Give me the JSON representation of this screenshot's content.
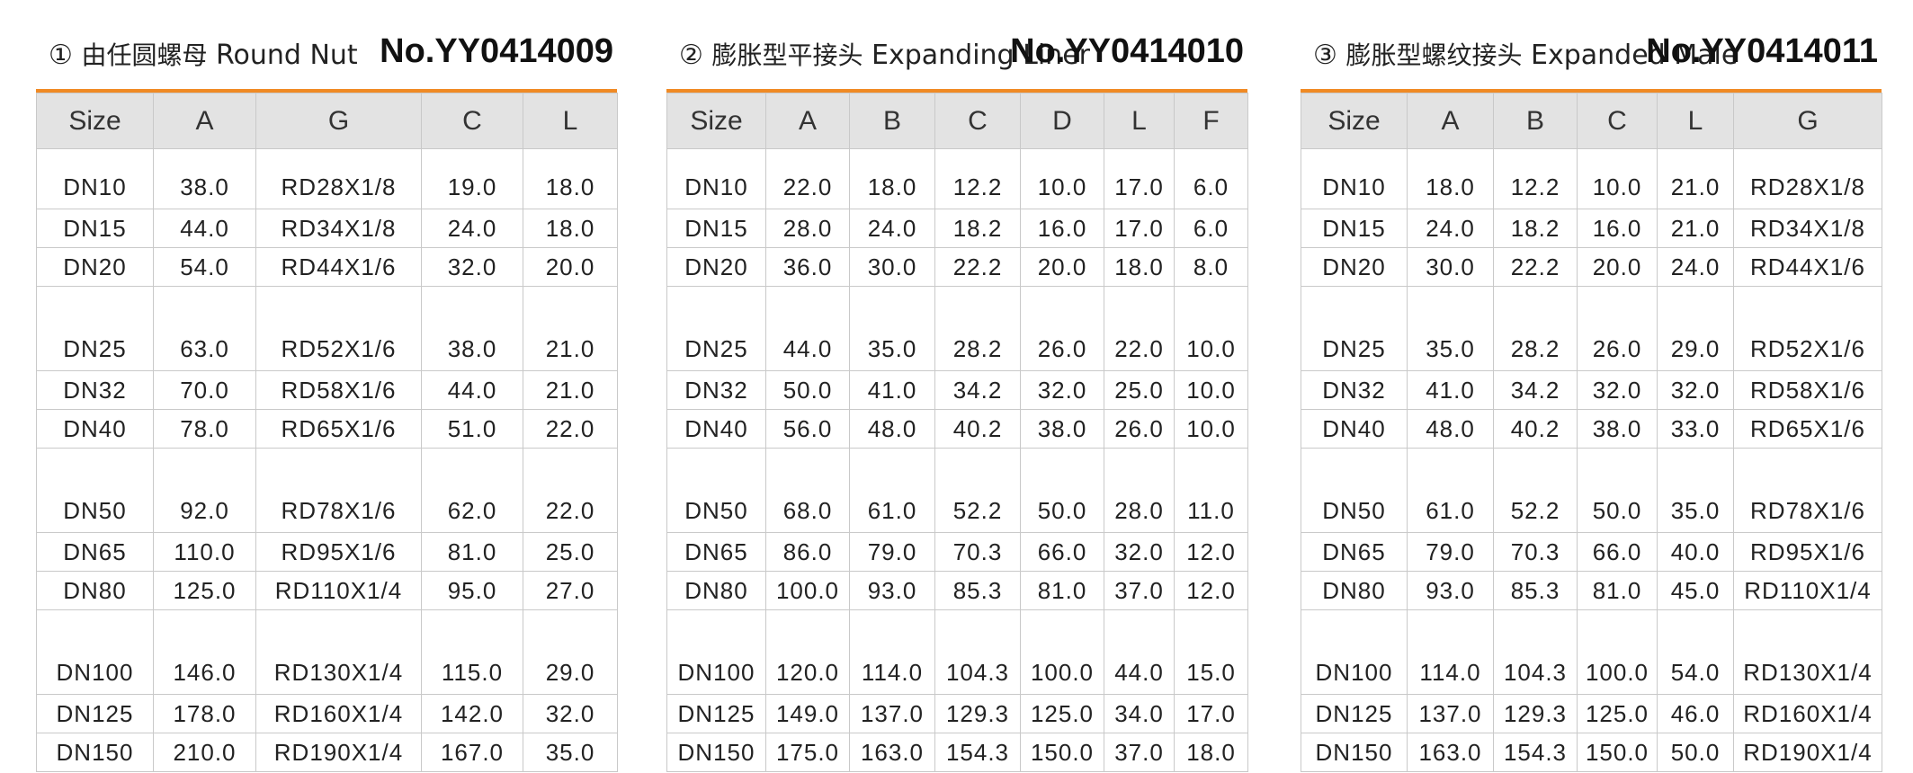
{
  "panels": [
    {
      "id": "round-nut",
      "circle_num": "①",
      "title_zh": "由任圆螺母",
      "title_en": "Round Nut",
      "code": "No.YY0414009",
      "columns": [
        "Size",
        "A",
        "G",
        "C",
        "L"
      ],
      "rows": [
        [
          "DN10",
          "38.0",
          "RD28X1/8",
          "19.0",
          "18.0"
        ],
        [
          "DN15",
          "44.0",
          "RD34X1/8",
          "24.0",
          "18.0"
        ],
        [
          "DN20",
          "54.0",
          "RD44X1/6",
          "32.0",
          "20.0"
        ],
        [
          "DN25",
          "63.0",
          "RD52X1/6",
          "38.0",
          "21.0"
        ],
        [
          "DN32",
          "70.0",
          "RD58X1/6",
          "44.0",
          "21.0"
        ],
        [
          "DN40",
          "78.0",
          "RD65X1/6",
          "51.0",
          "22.0"
        ],
        [
          "DN50",
          "92.0",
          "RD78X1/6",
          "62.0",
          "22.0"
        ],
        [
          "DN65",
          "110.0",
          "RD95X1/6",
          "81.0",
          "25.0"
        ],
        [
          "DN80",
          "125.0",
          "RD110X1/4",
          "95.0",
          "27.0"
        ],
        [
          "DN100",
          "146.0",
          "RD130X1/4",
          "115.0",
          "29.0"
        ],
        [
          "DN125",
          "178.0",
          "RD160X1/4",
          "142.0",
          "32.0"
        ],
        [
          "DN150",
          "210.0",
          "RD190X1/4",
          "167.0",
          "35.0"
        ]
      ]
    },
    {
      "id": "expanding-liner",
      "circle_num": "②",
      "title_zh": "膨胀型平接头",
      "title_en": "Expanding Liner",
      "code": "No.YY0414010",
      "columns": [
        "Size",
        "A",
        "B",
        "C",
        "D",
        "L",
        "F"
      ],
      "rows": [
        [
          "DN10",
          "22.0",
          "18.0",
          "12.2",
          "10.0",
          "17.0",
          "6.0"
        ],
        [
          "DN15",
          "28.0",
          "24.0",
          "18.2",
          "16.0",
          "17.0",
          "6.0"
        ],
        [
          "DN20",
          "36.0",
          "30.0",
          "22.2",
          "20.0",
          "18.0",
          "8.0"
        ],
        [
          "DN25",
          "44.0",
          "35.0",
          "28.2",
          "26.0",
          "22.0",
          "10.0"
        ],
        [
          "DN32",
          "50.0",
          "41.0",
          "34.2",
          "32.0",
          "25.0",
          "10.0"
        ],
        [
          "DN40",
          "56.0",
          "48.0",
          "40.2",
          "38.0",
          "26.0",
          "10.0"
        ],
        [
          "DN50",
          "68.0",
          "61.0",
          "52.2",
          "50.0",
          "28.0",
          "11.0"
        ],
        [
          "DN65",
          "86.0",
          "79.0",
          "70.3",
          "66.0",
          "32.0",
          "12.0"
        ],
        [
          "DN80",
          "100.0",
          "93.0",
          "85.3",
          "81.0",
          "37.0",
          "12.0"
        ],
        [
          "DN100",
          "120.0",
          "114.0",
          "104.3",
          "100.0",
          "44.0",
          "15.0"
        ],
        [
          "DN125",
          "149.0",
          "137.0",
          "129.3",
          "125.0",
          "34.0",
          "17.0"
        ],
        [
          "DN150",
          "175.0",
          "163.0",
          "154.3",
          "150.0",
          "37.0",
          "18.0"
        ]
      ]
    },
    {
      "id": "expanded-male",
      "circle_num": "③",
      "title_zh": "膨胀型螺纹接头",
      "title_en": "Expanded Male",
      "code": "No.YY0414011",
      "columns": [
        "Size",
        "A",
        "B",
        "C",
        "L",
        "G"
      ],
      "rows": [
        [
          "DN10",
          "18.0",
          "12.2",
          "10.0",
          "21.0",
          "RD28X1/8"
        ],
        [
          "DN15",
          "24.0",
          "18.2",
          "16.0",
          "21.0",
          "RD34X1/8"
        ],
        [
          "DN20",
          "30.0",
          "22.2",
          "20.0",
          "24.0",
          "RD44X1/6"
        ],
        [
          "DN25",
          "35.0",
          "28.2",
          "26.0",
          "29.0",
          "RD52X1/6"
        ],
        [
          "DN32",
          "41.0",
          "34.2",
          "32.0",
          "32.0",
          "RD58X1/6"
        ],
        [
          "DN40",
          "48.0",
          "40.2",
          "38.0",
          "33.0",
          "RD65X1/6"
        ],
        [
          "DN50",
          "61.0",
          "52.2",
          "50.0",
          "35.0",
          "RD78X1/6"
        ],
        [
          "DN65",
          "79.0",
          "70.3",
          "66.0",
          "40.0",
          "RD95X1/6"
        ],
        [
          "DN80",
          "93.0",
          "85.3",
          "81.0",
          "45.0",
          "RD110X1/4"
        ],
        [
          "DN100",
          "114.0",
          "104.3",
          "100.0",
          "54.0",
          "RD130X1/4"
        ],
        [
          "DN125",
          "137.0",
          "129.3",
          "125.0",
          "46.0",
          "RD160X1/4"
        ],
        [
          "DN150",
          "163.0",
          "154.3",
          "150.0",
          "50.0",
          "RD190X1/4"
        ]
      ]
    }
  ],
  "colors": {
    "accent_line": "#f08a24",
    "header_bg": "#e3e3e3",
    "grid": "#c9c9c9"
  }
}
